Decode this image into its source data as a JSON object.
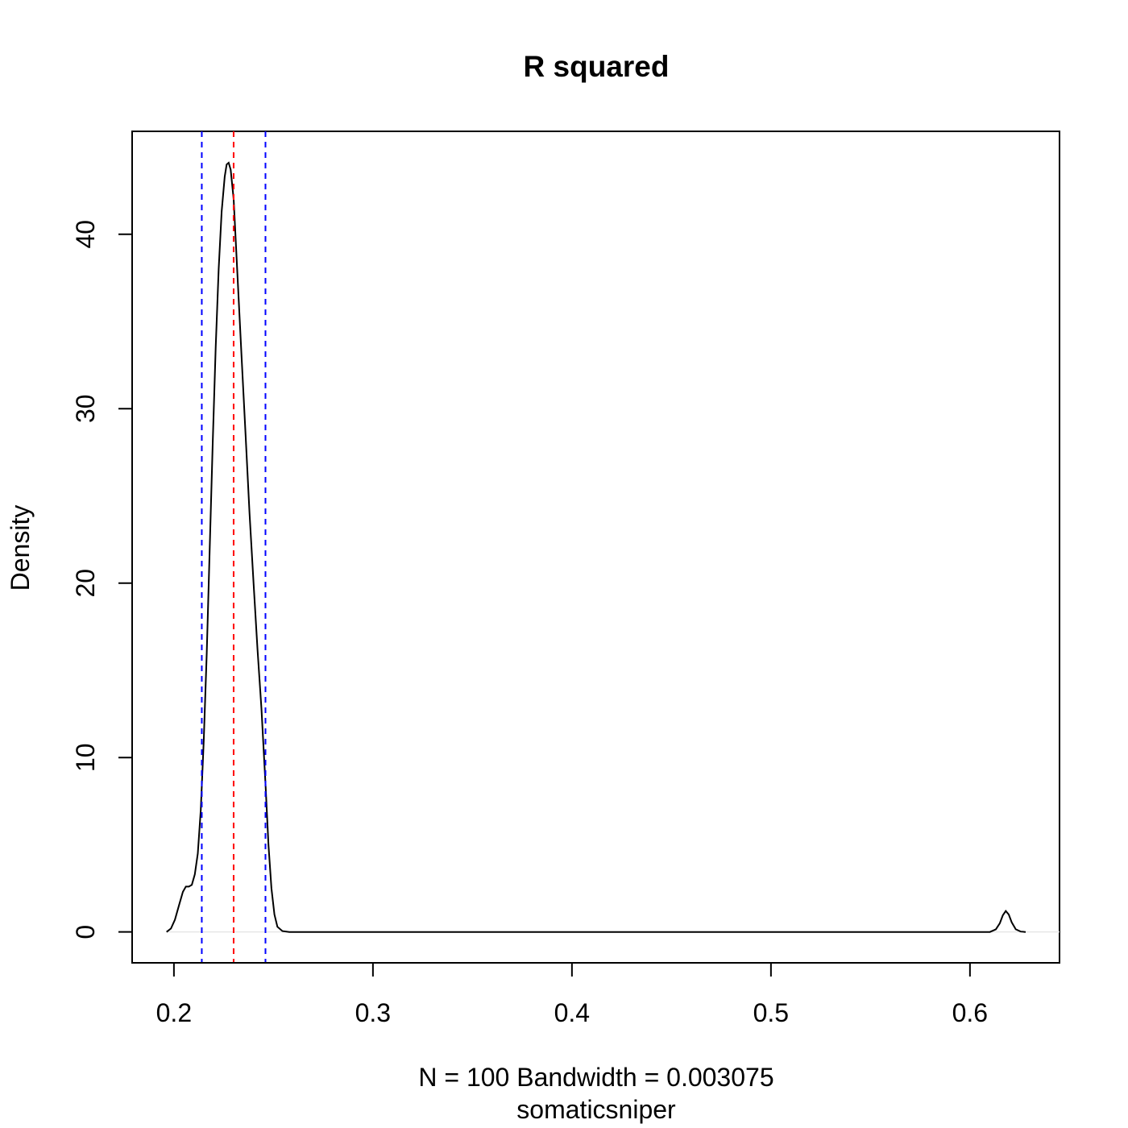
{
  "chart_data": {
    "type": "line",
    "title": "R squared",
    "xlabel_line1": "N = 100   Bandwidth = 0.003075",
    "xlabel_line2": "somaticsniper",
    "ylabel": "Density",
    "xlim": [
      0.179,
      0.645
    ],
    "ylim": [
      -1.77,
      45.9
    ],
    "x_ticks": [
      0.2,
      0.3,
      0.4,
      0.5,
      0.6
    ],
    "x_tick_labels": [
      "0.2",
      "0.3",
      "0.4",
      "0.5",
      "0.6"
    ],
    "y_ticks": [
      0,
      10,
      20,
      30,
      40
    ],
    "y_tick_labels": [
      "0",
      "10",
      "20",
      "30",
      "40"
    ],
    "baseline": 0,
    "series": [
      {
        "name": "density",
        "color": "#000000",
        "points": [
          [
            0.1963,
            0.0
          ],
          [
            0.1985,
            0.2
          ],
          [
            0.2005,
            0.7
          ],
          [
            0.2025,
            1.5
          ],
          [
            0.2045,
            2.3
          ],
          [
            0.206,
            2.6
          ],
          [
            0.2075,
            2.6
          ],
          [
            0.209,
            2.7
          ],
          [
            0.2105,
            3.3
          ],
          [
            0.212,
            4.5
          ],
          [
            0.2135,
            7.0
          ],
          [
            0.215,
            11.0
          ],
          [
            0.2165,
            16.0
          ],
          [
            0.218,
            22.0
          ],
          [
            0.2195,
            28.0
          ],
          [
            0.221,
            33.5
          ],
          [
            0.2225,
            38.0
          ],
          [
            0.224,
            41.3
          ],
          [
            0.2255,
            43.3
          ],
          [
            0.2265,
            44.0
          ],
          [
            0.2275,
            44.1
          ],
          [
            0.2285,
            43.7
          ],
          [
            0.23,
            42.0
          ],
          [
            0.232,
            37.5
          ],
          [
            0.234,
            33.0
          ],
          [
            0.236,
            28.5
          ],
          [
            0.238,
            24.0
          ],
          [
            0.24,
            20.0
          ],
          [
            0.242,
            16.2
          ],
          [
            0.244,
            12.8
          ],
          [
            0.246,
            8.5
          ],
          [
            0.2475,
            5.0
          ],
          [
            0.249,
            2.5
          ],
          [
            0.2505,
            1.0
          ],
          [
            0.252,
            0.3
          ],
          [
            0.2545,
            0.05
          ],
          [
            0.258,
            0.0
          ],
          [
            0.3,
            0.0
          ],
          [
            0.4,
            0.0
          ],
          [
            0.5,
            0.0
          ],
          [
            0.6,
            0.0
          ],
          [
            0.61,
            0.0
          ],
          [
            0.613,
            0.15
          ],
          [
            0.615,
            0.5
          ],
          [
            0.6165,
            0.95
          ],
          [
            0.618,
            1.2
          ],
          [
            0.6195,
            1.0
          ],
          [
            0.621,
            0.55
          ],
          [
            0.623,
            0.15
          ],
          [
            0.6255,
            0.02
          ],
          [
            0.628,
            0.0
          ]
        ]
      }
    ],
    "vlines": [
      {
        "name": "lower",
        "x": 0.214,
        "color": "#0000FF",
        "style": "dashed"
      },
      {
        "name": "mean",
        "x": 0.23,
        "color": "#FF0000",
        "style": "dashed"
      },
      {
        "name": "upper",
        "x": 0.246,
        "color": "#0000FF",
        "style": "dashed"
      }
    ]
  }
}
